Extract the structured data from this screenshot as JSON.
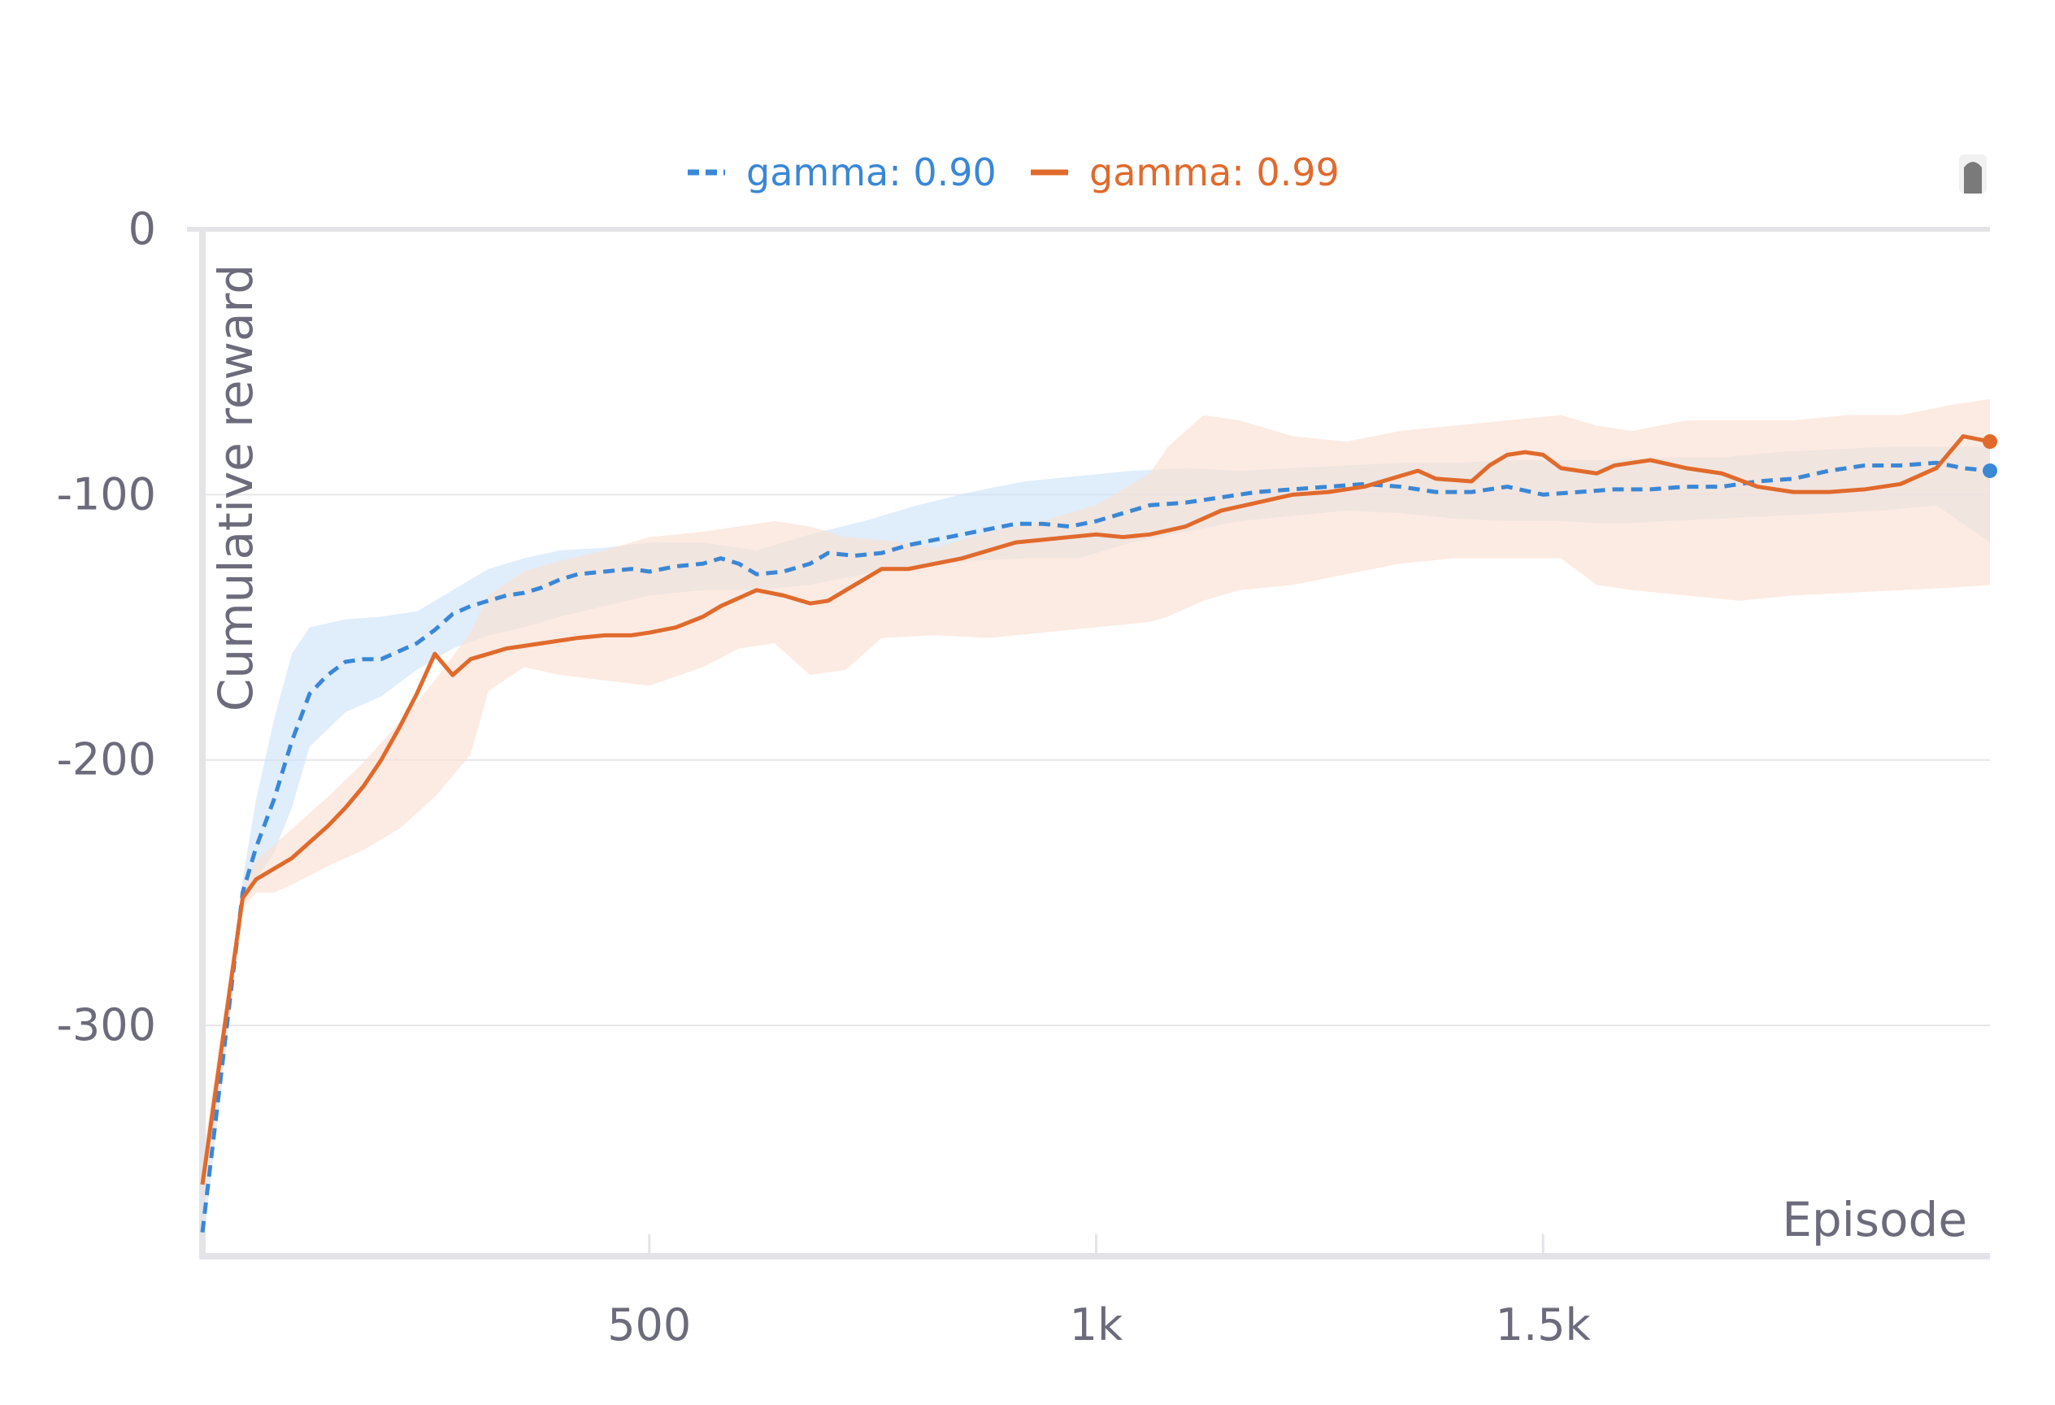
{
  "chart_data": {
    "type": "line",
    "title": "",
    "xlabel": "Episode",
    "ylabel": "Cumulative reward",
    "xlim": [
      0,
      2000
    ],
    "ylim": [
      -387,
      0
    ],
    "x_ticks": [
      500,
      1000,
      1500
    ],
    "x_tick_labels": [
      "500",
      "1k",
      "1.5k"
    ],
    "y_ticks": [
      0,
      -100,
      -200,
      -300
    ],
    "y_tick_labels": [
      "0",
      "-100",
      "-200",
      "-300"
    ],
    "grid": "horizontal",
    "legend_position": "top-center",
    "series": [
      {
        "name": "gamma: 0.90",
        "color": "#3a87d6",
        "dash": "dashed",
        "x": [
          0,
          45,
          60,
          80,
          100,
          120,
          140,
          160,
          180,
          200,
          220,
          240,
          260,
          280,
          300,
          320,
          340,
          360,
          380,
          400,
          420,
          450,
          480,
          500,
          530,
          560,
          580,
          600,
          620,
          650,
          680,
          700,
          730,
          760,
          790,
          820,
          850,
          880,
          910,
          940,
          970,
          1000,
          1030,
          1060,
          1100,
          1140,
          1180,
          1220,
          1260,
          1300,
          1340,
          1380,
          1420,
          1460,
          1500,
          1540,
          1580,
          1620,
          1660,
          1700,
          1740,
          1780,
          1820,
          1860,
          1900,
          1940,
          1970,
          2000
        ],
        "values": [
          -378,
          -250,
          -233,
          -215,
          -193,
          -175,
          -168,
          -163,
          -162,
          -162,
          -159,
          -156,
          -151,
          -145,
          -142,
          -140,
          -138,
          -137,
          -135,
          -132,
          -130,
          -129,
          -128,
          -129,
          -127,
          -126,
          -124,
          -126,
          -130,
          -129,
          -126,
          -122,
          -123,
          -122,
          -119,
          -117,
          -115,
          -113,
          -111,
          -111,
          -112,
          -110,
          -107,
          -104,
          -103,
          -101,
          -99,
          -98,
          -97,
          -96,
          -97,
          -99,
          -99,
          -97,
          -100,
          -99,
          -98,
          -98,
          -97,
          -97,
          -95,
          -94,
          -91,
          -89,
          -89,
          -88,
          -90,
          -91
        ]
      },
      {
        "name": "gamma: 0.99",
        "color": "#e06a2c",
        "dash": "solid",
        "x": [
          0,
          45,
          60,
          80,
          100,
          120,
          140,
          160,
          180,
          200,
          220,
          240,
          260,
          280,
          300,
          320,
          340,
          360,
          380,
          400,
          420,
          450,
          480,
          500,
          530,
          560,
          580,
          600,
          620,
          650,
          680,
          700,
          730,
          760,
          790,
          820,
          850,
          880,
          910,
          940,
          970,
          1000,
          1030,
          1060,
          1100,
          1140,
          1180,
          1220,
          1260,
          1300,
          1340,
          1360,
          1380,
          1420,
          1440,
          1460,
          1480,
          1500,
          1520,
          1560,
          1580,
          1620,
          1660,
          1700,
          1740,
          1780,
          1820,
          1860,
          1900,
          1940,
          1970,
          2000
        ],
        "values": [
          -360,
          -252,
          -245,
          -241,
          -237,
          -231,
          -225,
          -218,
          -210,
          -200,
          -188,
          -175,
          -160,
          -168,
          -162,
          -160,
          -158,
          -157,
          -156,
          -155,
          -154,
          -153,
          -153,
          -152,
          -150,
          -146,
          -142,
          -139,
          -136,
          -138,
          -141,
          -140,
          -134,
          -128,
          -128,
          -126,
          -124,
          -121,
          -118,
          -117,
          -116,
          -115,
          -116,
          -115,
          -112,
          -106,
          -103,
          -100,
          -99,
          -97,
          -93,
          -91,
          -94,
          -95,
          -89,
          -85,
          -84,
          -85,
          -90,
          -92,
          -89,
          -87,
          -90,
          -92,
          -97,
          -99,
          -99,
          -98,
          -96,
          -90,
          -78,
          -80
        ]
      }
    ],
    "bands": [
      {
        "series": "gamma: 0.90",
        "color": "#cfe3f8",
        "x": [
          0,
          45,
          60,
          80,
          100,
          120,
          160,
          200,
          240,
          280,
          320,
          360,
          400,
          450,
          500,
          560,
          620,
          680,
          740,
          800,
          860,
          920,
          980,
          1040,
          1100,
          1160,
          1220,
          1280,
          1340,
          1400,
          1460,
          1520,
          1580,
          1640,
          1700,
          1760,
          1820,
          1880,
          1940,
          2000
        ],
        "upper": [
          -370,
          -245,
          -215,
          -185,
          -160,
          -150,
          -147,
          -146,
          -144,
          -136,
          -128,
          -124,
          -121,
          -120,
          -118,
          -118,
          -121,
          -115,
          -110,
          -104,
          -99,
          -95,
          -93,
          -91,
          -90,
          -91,
          -90,
          -89,
          -88,
          -88,
          -87,
          -87,
          -87,
          -86,
          -86,
          -84,
          -83,
          -82,
          -82,
          -82
        ],
        "lower": [
          -385,
          -255,
          -245,
          -235,
          -218,
          -195,
          -182,
          -176,
          -166,
          -158,
          -153,
          -150,
          -146,
          -142,
          -138,
          -136,
          -136,
          -134,
          -130,
          -127,
          -125,
          -124,
          -124,
          -118,
          -114,
          -110,
          -108,
          -106,
          -107,
          -109,
          -110,
          -110,
          -111,
          -110,
          -109,
          -108,
          -107,
          -106,
          -104,
          -118
        ]
      },
      {
        "series": "gamma: 0.99",
        "color": "#fbe1d3",
        "x": [
          0,
          45,
          60,
          80,
          100,
          140,
          180,
          220,
          260,
          300,
          320,
          360,
          400,
          450,
          500,
          560,
          600,
          640,
          680,
          720,
          760,
          820,
          880,
          940,
          1000,
          1060,
          1080,
          1120,
          1160,
          1220,
          1280,
          1340,
          1400,
          1460,
          1520,
          1560,
          1600,
          1660,
          1720,
          1780,
          1840,
          1900,
          1960,
          2000
        ],
        "upper": [
          -350,
          -248,
          -238,
          -232,
          -226,
          -214,
          -201,
          -186,
          -170,
          -152,
          -138,
          -129,
          -125,
          -121,
          -116,
          -114,
          -112,
          -110,
          -112,
          -116,
          -117,
          -120,
          -114,
          -110,
          -104,
          -92,
          -82,
          -70,
          -72,
          -78,
          -80,
          -76,
          -74,
          -72,
          -70,
          -74,
          -76,
          -72,
          -72,
          -72,
          -70,
          -70,
          -66,
          -64
        ],
        "lower": [
          -368,
          -256,
          -250,
          -250,
          -247,
          -240,
          -234,
          -226,
          -214,
          -198,
          -174,
          -165,
          -168,
          -170,
          -172,
          -165,
          -158,
          -156,
          -168,
          -166,
          -154,
          -153,
          -154,
          -152,
          -150,
          -148,
          -146,
          -140,
          -136,
          -134,
          -130,
          -126,
          -124,
          -124,
          -124,
          -134,
          -136,
          -138,
          -140,
          -138,
          -137,
          -136,
          -135,
          -134
        ]
      }
    ]
  },
  "legend": {
    "items": [
      {
        "label": "gamma: 0.90",
        "color": "#3a87d6"
      },
      {
        "label": "gamma: 0.99",
        "color": "#e06a2c"
      }
    ]
  }
}
